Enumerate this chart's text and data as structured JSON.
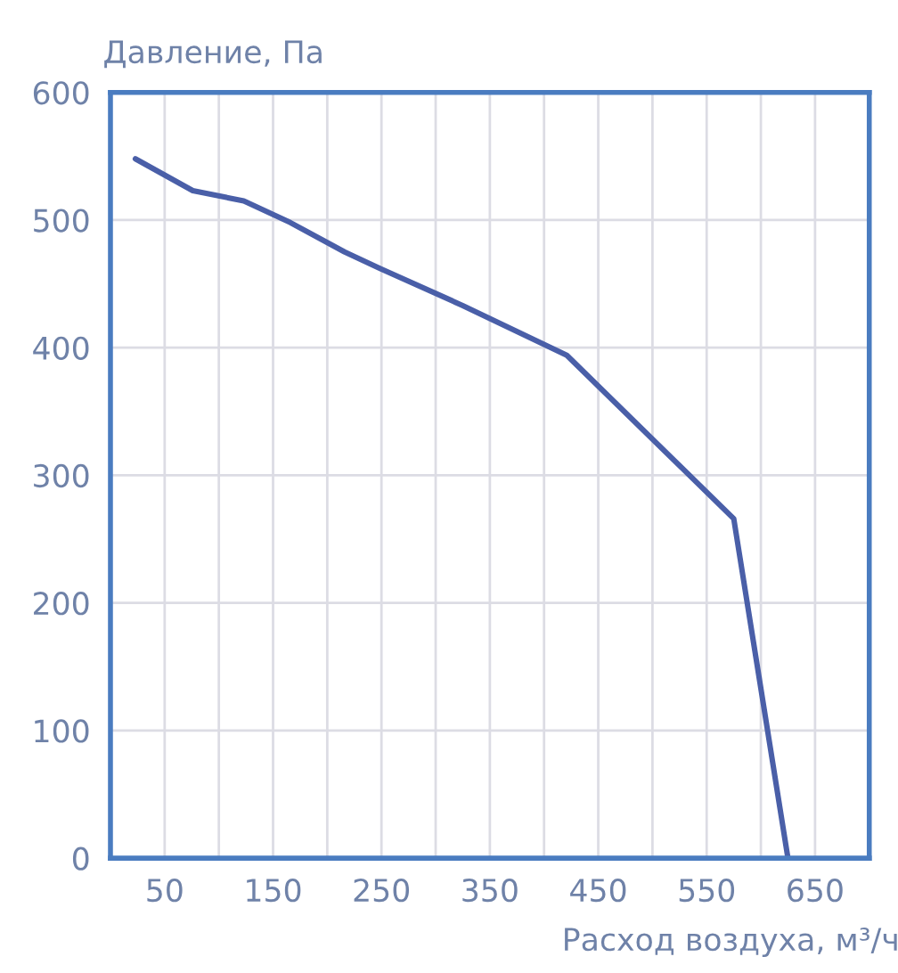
{
  "chart_data": {
    "type": "line",
    "ylabel": "Давление, Па",
    "xlabel": "Расход воздуха, м³/ч",
    "x": [
      23,
      76,
      123,
      166,
      216,
      249,
      325,
      421,
      575,
      625
    ],
    "series": [
      {
        "color": "#4a5fa8",
        "values": [
          548,
          523,
          515,
          498,
          475,
          462,
          433,
          394,
          266,
          0
        ]
      }
    ],
    "xlim": [
      0,
      700
    ],
    "xticks": [
      {
        "value": 0,
        "label": null
      },
      50,
      {
        "value": 100,
        "label": null
      },
      150,
      {
        "value": 200,
        "label": null
      },
      250,
      {
        "value": 300,
        "label": null
      },
      350,
      {
        "value": 400,
        "label": null
      },
      450,
      {
        "value": 500,
        "label": null
      },
      550,
      {
        "value": 600,
        "label": null
      },
      650,
      {
        "value": 700,
        "label": null
      }
    ],
    "ylim": [
      0,
      600
    ],
    "yticks": [
      0,
      100,
      200,
      300,
      400,
      500,
      600
    ],
    "grid": true,
    "marker": "none",
    "line_style": "solid"
  }
}
